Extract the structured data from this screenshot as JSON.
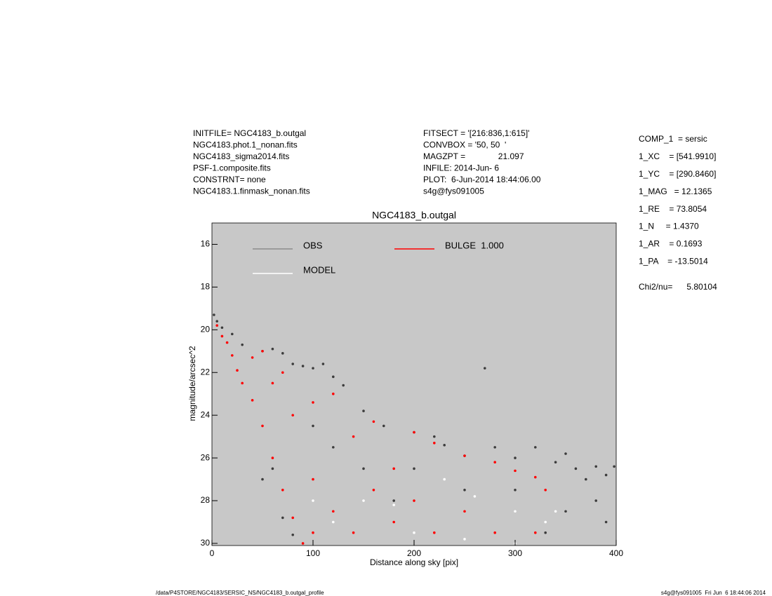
{
  "header": {
    "left": [
      "INITFILE= NGC4183_b.outgal",
      "NGC4183.phot.1_nonan.fits",
      "NGC4183_sigma2014.fits",
      "PSF-1.composite.fits",
      "CONSTRNT= none",
      "NGC4183.1.finmask_nonan.fits"
    ],
    "middle": [
      "FITSECT = '[216:836,1:615]'",
      "CONVBOX = '50, 50  '",
      "MAGZPT =              21.097",
      "INFILE: 2014-Jun- 6",
      "PLOT:  6-Jun-2014 18:44:06.00",
      "s4g@fys091005"
    ]
  },
  "params": [
    "COMP_1  = sersic",
    "1_XC    = [541.9910]",
    "1_YC    = [290.8460]",
    "1_MAG   = 12.1365",
    "1_RE    = 73.8054",
    "1_N     = 1.4370",
    "1_AR    = 0.1693",
    "1_PA    = -13.5014"
  ],
  "chi2": "Chi2/nu=      5.80104",
  "footer": {
    "left": "/data/P4STORE/NGC4183/SERSIC_NS/NGC4183_b.outgal_profile",
    "right": "s4g@fys091005  Fri Jun  6 18:44:06 2014"
  },
  "chart_data": {
    "type": "scatter",
    "title": "NGC4183_b.outgal",
    "x_label": "Distance along sky [pix]",
    "y_label": "magnitude/arcsec^2",
    "xlim": [
      0,
      400
    ],
    "xticks": [
      0,
      100,
      200,
      300,
      400
    ],
    "ylim": [
      30.1,
      15
    ],
    "yticks": [
      16,
      18,
      20,
      22,
      24,
      26,
      28,
      30
    ],
    "background": "#c8c8c8",
    "series": [
      {
        "name": "OBS",
        "color": "#8c8c8c",
        "marker_color": "#3c3c3c",
        "x": [
          2,
          5,
          10,
          20,
          30,
          50,
          60,
          70,
          80,
          90,
          100,
          110,
          120,
          130,
          150,
          170,
          200,
          220,
          230,
          250,
          270,
          280,
          300,
          320,
          340,
          350,
          360,
          370,
          380,
          390,
          398,
          350,
          380,
          60,
          50,
          70,
          80,
          150,
          200,
          250,
          300,
          120,
          100,
          180,
          330,
          390
        ],
        "values": [
          19.3,
          19.6,
          19.9,
          20.2,
          20.7,
          21.0,
          20.9,
          21.1,
          21.6,
          21.7,
          21.8,
          21.6,
          22.2,
          22.6,
          23.8,
          24.5,
          24.8,
          25.0,
          25.4,
          25.9,
          21.8,
          25.5,
          26.0,
          25.5,
          26.2,
          25.8,
          26.5,
          27.0,
          26.4,
          26.8,
          26.4,
          28.5,
          28.0,
          26.5,
          27.0,
          28.8,
          29.6,
          26.5,
          26.5,
          27.5,
          27.5,
          25.5,
          24.5,
          28.0,
          29.5,
          29.0
        ]
      },
      {
        "name": "MODEL",
        "color": "#ffffff",
        "marker_color": "#ffffff",
        "x": [
          150,
          200,
          250,
          300,
          330,
          340,
          260,
          230,
          180,
          120,
          100,
          300
        ],
        "values": [
          28.0,
          29.5,
          29.8,
          28.5,
          29.0,
          28.5,
          27.8,
          27.0,
          28.2,
          29.0,
          28.0,
          30.0
        ]
      },
      {
        "name": "BULGE  1.000",
        "color": "#ff0000",
        "marker_color": "#ff0000",
        "x": [
          5,
          10,
          15,
          20,
          25,
          30,
          40,
          40,
          50,
          50,
          60,
          60,
          70,
          70,
          80,
          80,
          90,
          100,
          100,
          120,
          120,
          140,
          140,
          160,
          160,
          180,
          180,
          200,
          200,
          220,
          220,
          250,
          250,
          280,
          280,
          300,
          320,
          320,
          330,
          100
        ],
        "values": [
          19.8,
          20.3,
          20.6,
          21.2,
          21.9,
          22.5,
          23.3,
          21.3,
          21.0,
          24.5,
          22.5,
          26.0,
          22.0,
          27.5,
          28.8,
          24.0,
          30.0,
          23.4,
          27.0,
          23.0,
          28.5,
          25.0,
          29.5,
          24.3,
          27.5,
          26.5,
          29.0,
          24.8,
          28.0,
          25.3,
          29.5,
          25.9,
          28.5,
          26.2,
          29.5,
          26.6,
          26.9,
          29.5,
          27.5,
          29.5
        ]
      }
    ]
  }
}
